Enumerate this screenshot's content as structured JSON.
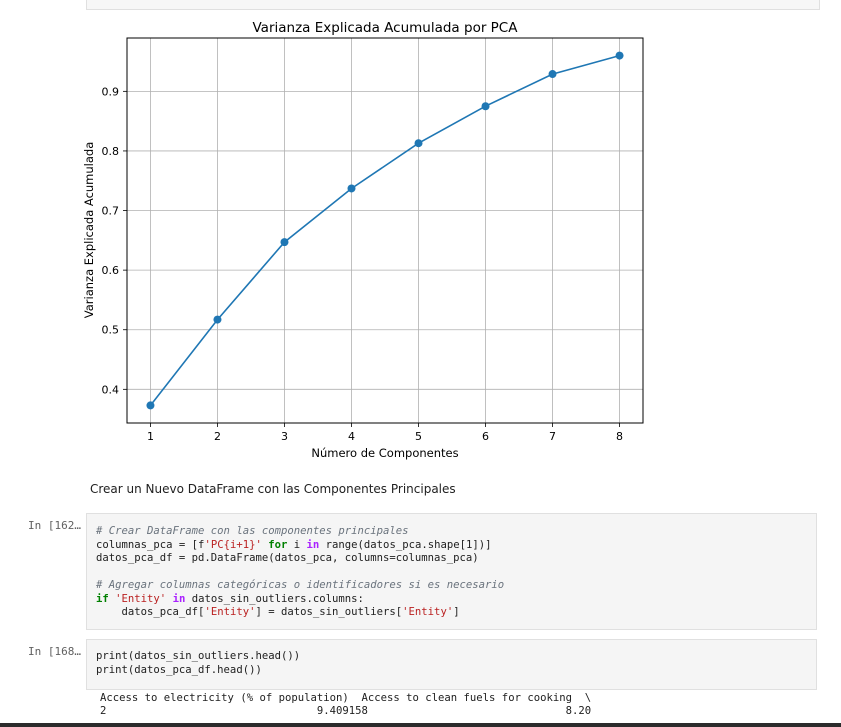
{
  "chart_data": {
    "type": "line",
    "title": "Varianza Explicada Acumulada por PCA",
    "xlabel": "Número de Componentes",
    "ylabel": "Varianza Explicada Acumulada",
    "x": [
      1,
      2,
      3,
      4,
      5,
      6,
      7,
      8
    ],
    "y": [
      0.373,
      0.517,
      0.647,
      0.737,
      0.813,
      0.875,
      0.929,
      0.96
    ],
    "xticks": [
      "1",
      "2",
      "3",
      "4",
      "5",
      "6",
      "7",
      "8"
    ],
    "yticks": [
      "0.4",
      "0.5",
      "0.6",
      "0.7",
      "0.8",
      "0.9"
    ],
    "grid": true,
    "color": "#1f77b4"
  },
  "markdown": {
    "text": "Crear un Nuevo DataFrame con las Componentes Principales"
  },
  "cells": [
    {
      "prompt": "In [162…",
      "lines": [
        [
          {
            "c": "cm",
            "t": "# Crear DataFrame con las componentes principales"
          }
        ],
        [
          {
            "c": "",
            "t": "columnas_pca = [f"
          },
          {
            "c": "str",
            "t": "'PC{i+1}'"
          },
          {
            "c": "",
            "t": " "
          },
          {
            "c": "kw",
            "t": "for"
          },
          {
            "c": "",
            "t": " i "
          },
          {
            "c": "op",
            "t": "in"
          },
          {
            "c": "",
            "t": " range(datos_pca.shape[1])]"
          }
        ],
        [
          {
            "c": "",
            "t": "datos_pca_df = pd.DataFrame(datos_pca, columns=columnas_pca)"
          }
        ],
        [
          {
            "c": "",
            "t": " "
          }
        ],
        [
          {
            "c": "cm",
            "t": "# Agregar columnas categóricas o identificadores si es necesario"
          }
        ],
        [
          {
            "c": "kw",
            "t": "if"
          },
          {
            "c": "",
            "t": " "
          },
          {
            "c": "str",
            "t": "'Entity'"
          },
          {
            "c": "",
            "t": " "
          },
          {
            "c": "op",
            "t": "in"
          },
          {
            "c": "",
            "t": " datos_sin_outliers.columns:"
          }
        ],
        [
          {
            "c": "",
            "t": "    datos_pca_df["
          },
          {
            "c": "str",
            "t": "'Entity'"
          },
          {
            "c": "",
            "t": "] = datos_sin_outliers["
          },
          {
            "c": "str",
            "t": "'Entity'"
          },
          {
            "c": "",
            "t": "]"
          }
        ]
      ]
    },
    {
      "prompt": "In [168…",
      "lines": [
        [
          {
            "c": "",
            "t": "print(datos_sin_outliers.head())"
          }
        ],
        [
          {
            "c": "",
            "t": "print(datos_pca_df.head())"
          }
        ]
      ]
    }
  ],
  "output": {
    "header": "Access to electricity (% of population)  Access to clean fuels for cooking  \\",
    "row": "2                                 9.409158                               8.20"
  }
}
